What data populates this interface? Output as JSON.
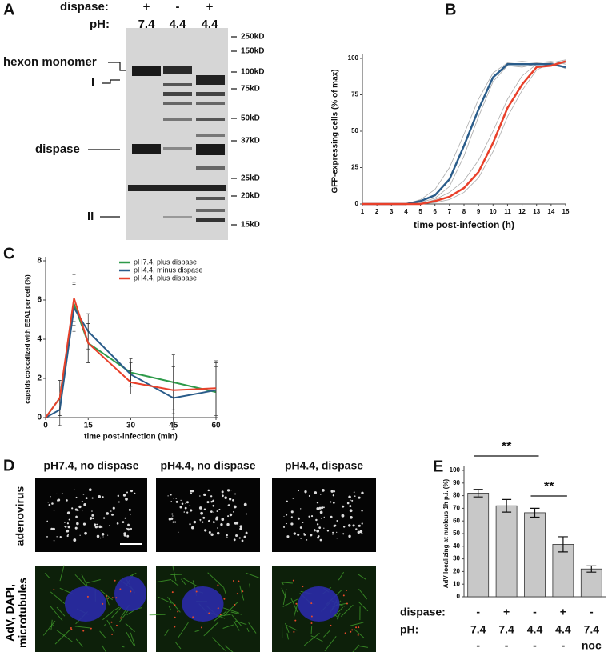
{
  "figure": {
    "gel": {
      "panel": "A",
      "header": [
        {
          "label": "dispase:",
          "values": [
            "+",
            "-",
            "+"
          ]
        },
        {
          "label": "pH:",
          "values": [
            "7.4",
            "4.4",
            "4.4"
          ]
        }
      ],
      "band_labels": [
        "hexon monomer",
        "I",
        "dispase",
        "II"
      ],
      "markers": [
        "250kD",
        "150kD",
        "100kD",
        "75kD",
        "50kD",
        "37kD",
        "25kD",
        "20kD",
        "15kD"
      ]
    },
    "micrographs": {
      "panel": "D",
      "columns": [
        "pH7.4, no dispase",
        "pH4.4, no dispase",
        "pH4.4, dispase"
      ],
      "rows": [
        "adenovirus",
        "AdV, DAPI, microtubules"
      ]
    }
  },
  "chart_data": [
    {
      "type": "line",
      "panel": "B",
      "xlabel": "time post-infection (h)",
      "ylabel": "GFP-expressing cells (% of max)",
      "x": [
        1,
        2,
        3,
        4,
        5,
        6,
        7,
        8,
        9,
        10,
        11,
        12,
        13,
        14,
        15
      ],
      "xlim": [
        1,
        15
      ],
      "xticks": [
        1,
        2,
        3,
        4,
        5,
        6,
        7,
        8,
        9,
        10,
        11,
        12,
        13,
        14,
        15
      ],
      "ylim": [
        0,
        100
      ],
      "yticks": [
        0,
        25,
        50,
        75,
        100
      ],
      "series": [
        {
          "color": "#aaaaaa",
          "linewidth": 0.8,
          "values": [
            0,
            0,
            0,
            0,
            3,
            10,
            25,
            48,
            72,
            90,
            97,
            98,
            97,
            98,
            96
          ]
        },
        {
          "color": "#aaaaaa",
          "linewidth": 0.8,
          "values": [
            0,
            0,
            0,
            0,
            1,
            4,
            12,
            33,
            60,
            84,
            95,
            94,
            96,
            97,
            93
          ]
        },
        {
          "color": "#aaaaaa",
          "linewidth": 0.8,
          "values": [
            0,
            0,
            0,
            0,
            0,
            1,
            3,
            8,
            18,
            36,
            60,
            78,
            92,
            97,
            99
          ]
        },
        {
          "color": "#aaaaaa",
          "linewidth": 0.8,
          "values": [
            0,
            0,
            0,
            0,
            0,
            3,
            8,
            16,
            30,
            50,
            72,
            88,
            96,
            95,
            97
          ]
        },
        {
          "color": "#2a5c8a",
          "linewidth": 2.5,
          "values": [
            0,
            0,
            0,
            0,
            2,
            6,
            17,
            40,
            65,
            87,
            96,
            96,
            96,
            96,
            94
          ]
        },
        {
          "color": "#e8402a",
          "linewidth": 2.5,
          "values": [
            0,
            0,
            0,
            0,
            0,
            2,
            5,
            11,
            22,
            42,
            66,
            82,
            94,
            95,
            98
          ]
        }
      ]
    },
    {
      "type": "line",
      "panel": "C",
      "xlabel": "time post-infection (min)",
      "ylabel": "capsids colocalized with EEA1 per cell (%)",
      "x": [
        0,
        5,
        10,
        15,
        30,
        45,
        60
      ],
      "xlim": [
        0,
        60
      ],
      "xticks": [
        0,
        15,
        30,
        45,
        60
      ],
      "ylim": [
        0,
        8
      ],
      "yticks": [
        0,
        2,
        4,
        6,
        8
      ],
      "legend": "upper right",
      "series": [
        {
          "name": "pH7.4, plus dispase",
          "color": "#2e9a4a",
          "linewidth": 2,
          "values": [
            0,
            1.0,
            5.8,
            3.8,
            2.3,
            1.8,
            1.3
          ],
          "errors": [
            0,
            0.9,
            1.1,
            1.0,
            0.7,
            1.4,
            1.3
          ]
        },
        {
          "name": "pH4.4, minus dispase",
          "color": "#2a5c8a",
          "linewidth": 2,
          "values": [
            0,
            0.4,
            5.6,
            4.4,
            2.2,
            1.0,
            1.4
          ],
          "errors": [
            0,
            0.8,
            1.2,
            0.9,
            0.6,
            1.6,
            1.4
          ]
        },
        {
          "name": "pH4.4, plus dispase",
          "color": "#e8402a",
          "linewidth": 2,
          "values": [
            0,
            1.0,
            6.1,
            3.8,
            1.8,
            1.4,
            1.5
          ],
          "errors": [
            0,
            0.9,
            1.2,
            1.0,
            0.6,
            1.2,
            1.4
          ]
        }
      ]
    },
    {
      "type": "bar",
      "panel": "E",
      "ylabel": "AdV localizing at nucleus 1h p.i. (%)",
      "ylim": [
        0,
        100
      ],
      "yticks": [
        0,
        10,
        20,
        30,
        40,
        50,
        60,
        70,
        80,
        90,
        100
      ],
      "values": [
        82,
        72,
        66.5,
        41.5,
        22
      ],
      "errors": [
        3,
        5,
        3.5,
        6,
        2.5
      ],
      "color": "#c8c8c8",
      "condition_rows": [
        {
          "label": "dispase:",
          "values": [
            "-",
            "+",
            "-",
            "+",
            "-"
          ]
        },
        {
          "label": "pH:",
          "values": [
            "7.4",
            "7.4",
            "4.4",
            "4.4",
            "7.4"
          ]
        },
        {
          "values": [
            "-",
            "-",
            "-",
            "-",
            "noc"
          ]
        }
      ],
      "annotations": [
        "**",
        "**"
      ]
    }
  ]
}
